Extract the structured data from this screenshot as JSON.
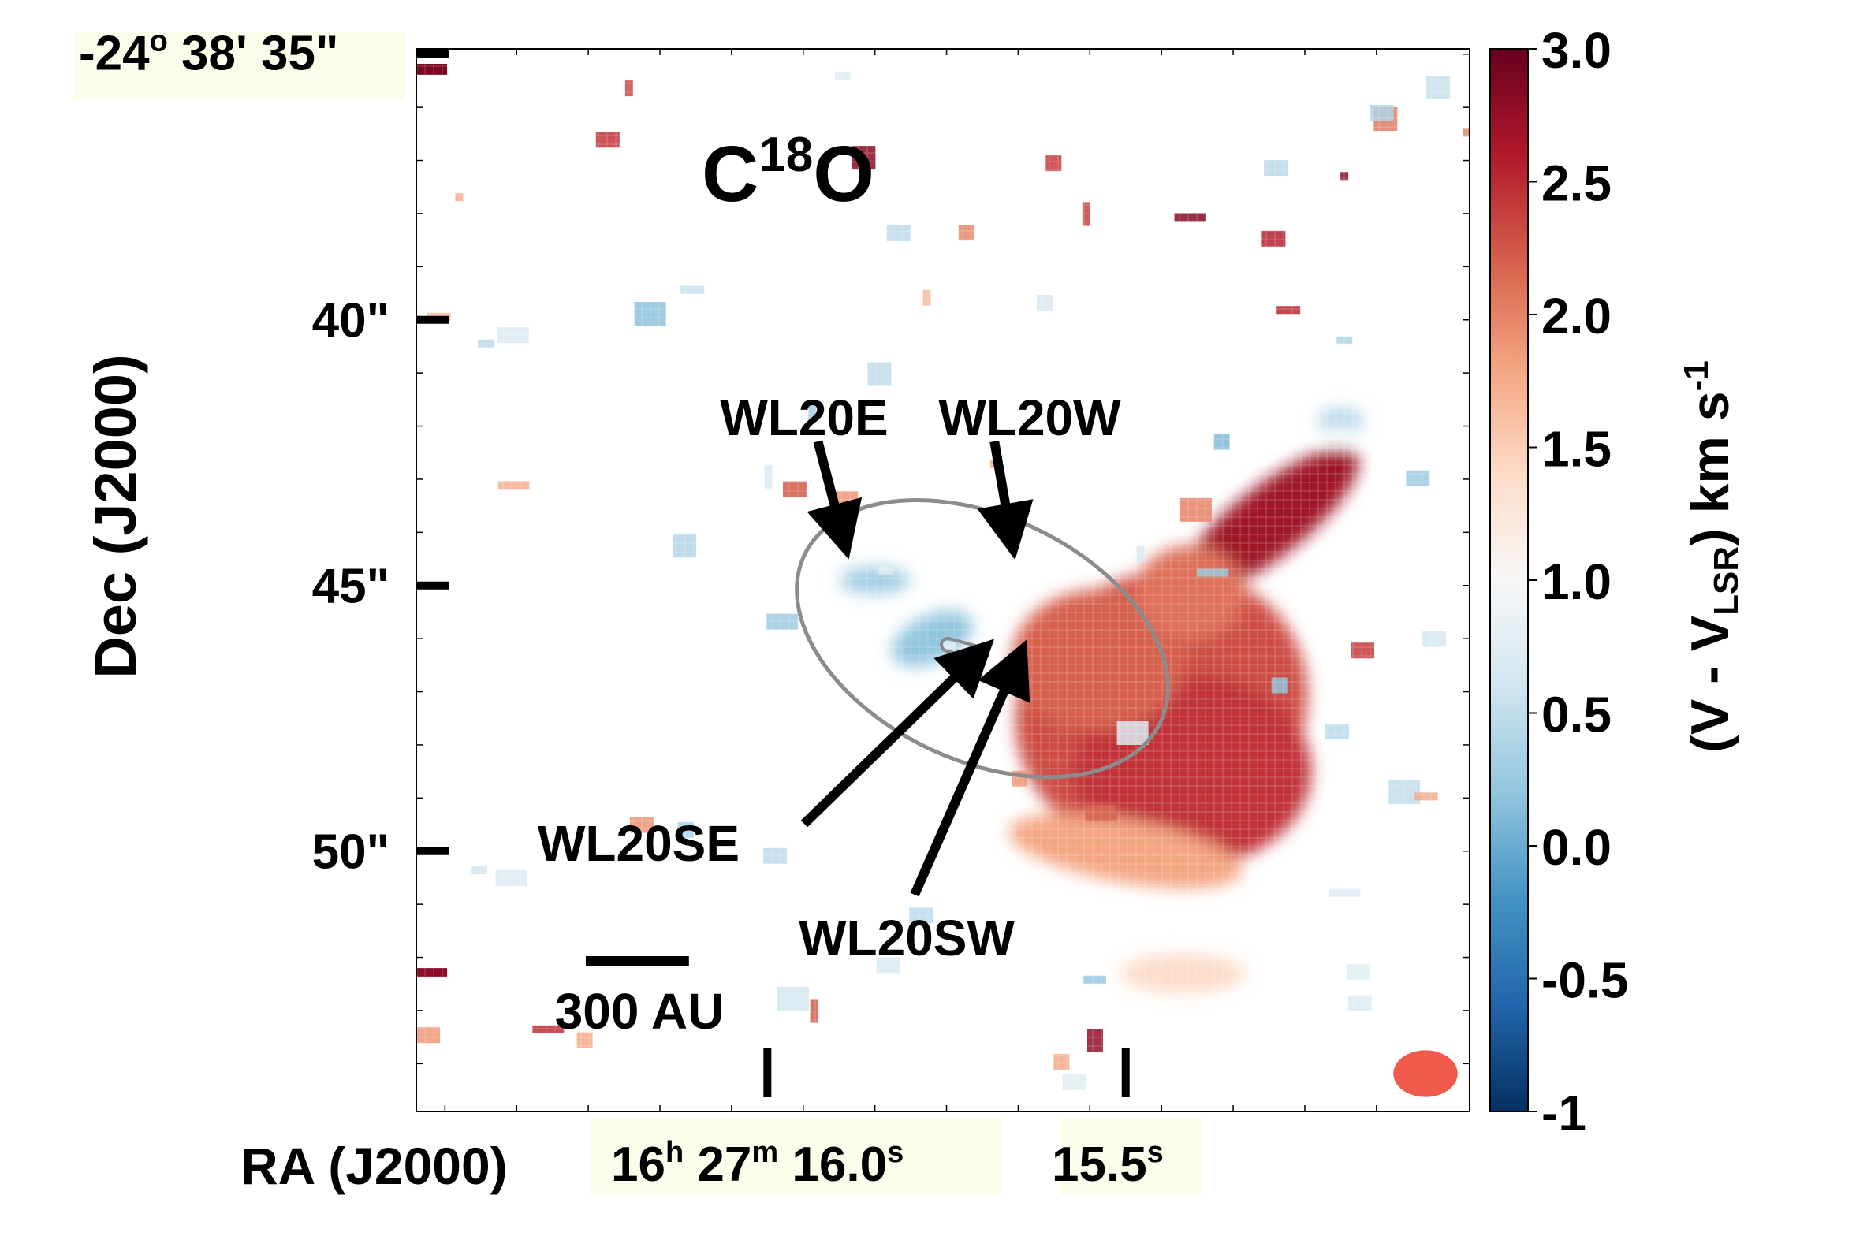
{
  "chart_data": {
    "type": "heatmap",
    "title": "C18O",
    "title_main": "C",
    "title_sup": "18",
    "title_end": "O",
    "xlabel": "RA (J2000)",
    "ylabel": "Dec (J2000)",
    "colorbar_label": "(V - VLSR) km s-1",
    "colorbar_label_parts": {
      "a": "(V - V",
      "sub": "LSR",
      "b": ") km s",
      "sup": "-1"
    },
    "colorbar": {
      "range": [
        -1,
        3.0
      ],
      "ticks": [
        {
          "value": 3.0,
          "label": "3.0"
        },
        {
          "value": 2.5,
          "label": "2.5"
        },
        {
          "value": 2.0,
          "label": "2.0"
        },
        {
          "value": 1.5,
          "label": "1.5"
        },
        {
          "value": 1.0,
          "label": "1.0"
        },
        {
          "value": 0.5,
          "label": "0.5"
        },
        {
          "value": 0.0,
          "label": "0.0"
        },
        {
          "value": -0.5,
          "label": "-0.5"
        },
        {
          "value": -1,
          "label": "-1"
        }
      ],
      "colors": [
        "#053061",
        "#2166ac",
        "#4393c3",
        "#92c5de",
        "#d1e5f0",
        "#f7f7f7",
        "#fddbc7",
        "#f4a582",
        "#d6604d",
        "#b2182b",
        "#67001f"
      ]
    },
    "dec_ticks": [
      {
        "arcsec": 35,
        "label_a": "-24",
        "label_sup": "o",
        "label_b": " 38' 35\""
      },
      {
        "arcsec": 40,
        "label_a": "40\"",
        "label_sup": "",
        "label_b": ""
      },
      {
        "arcsec": 45,
        "label_a": "45\"",
        "label_sup": "",
        "label_b": ""
      },
      {
        "arcsec": 50,
        "label_a": "50\"",
        "label_sup": "",
        "label_b": ""
      }
    ],
    "ra_ticks": [
      {
        "seconds": 16.0,
        "parts": [
          [
            "16",
            ""
          ],
          [
            "h",
            "sup"
          ],
          [
            " 27",
            ""
          ],
          [
            "m",
            "sup"
          ],
          [
            " 16.0",
            ""
          ],
          [
            "s",
            "sup"
          ]
        ]
      },
      {
        "seconds": 15.5,
        "parts": [
          [
            "15.5",
            ""
          ],
          [
            "s",
            "sup"
          ]
        ]
      }
    ],
    "axis_ranges": {
      "ra_seconds": [
        16.49,
        15.02
      ],
      "dec_arcsec": [
        34.9,
        54.9
      ]
    },
    "sources": [
      {
        "name": "WL20E",
        "ra_s": 15.891,
        "dec_arcsec": 44.2
      },
      {
        "name": "WL20W",
        "ra_s": 15.659,
        "dec_arcsec": 44.2
      },
      {
        "name": "WL20SE",
        "ra_s": 15.725,
        "dec_arcsec": 46.2
      },
      {
        "name": "WL20SW",
        "ra_s": 15.665,
        "dec_arcsec": 46.3
      }
    ],
    "contour_ellipse": {
      "ra_s": 15.7,
      "dec_arcsec": 46.0,
      "semi_major_arcsec": 3.7,
      "semi_minor_arcsec": 2.3,
      "pa_deg": 25
    },
    "scale_bar": {
      "label": "300 AU",
      "length_arcsec": 2.2
    },
    "beam": {
      "major_arcsec": 1.1,
      "minor_arcsec": 0.8
    },
    "velocity_features": [
      {
        "region": "main-red-lobe",
        "ra_s": 15.45,
        "dec_arcsec": 47.3,
        "velocity": 2.3
      },
      {
        "region": "red-arm-northwest",
        "ra_s": 15.3,
        "dec_arcsec": 43.8,
        "velocity": 2.7
      },
      {
        "region": "red-finger-south",
        "ra_s": 15.5,
        "dec_arcsec": 50.0,
        "velocity": 1.8
      },
      {
        "region": "blue-patch-near-WL20S",
        "ra_s": 15.77,
        "dec_arcsec": 46.0,
        "velocity": 0.2
      },
      {
        "region": "blue-patch-north",
        "ra_s": 15.85,
        "dec_arcsec": 44.9,
        "velocity": 0.3
      },
      {
        "region": "blue-patch-east",
        "ra_s": 15.2,
        "dec_arcsec": 41.9,
        "velocity": 0.4
      },
      {
        "region": "red-spot-northeast-corner",
        "ra_s": 16.48,
        "dec_arcsec": 35.3,
        "velocity": 2.9
      },
      {
        "region": "red-spot-southeast",
        "ra_s": 16.48,
        "dec_arcsec": 52.2,
        "velocity": 2.8
      }
    ]
  }
}
